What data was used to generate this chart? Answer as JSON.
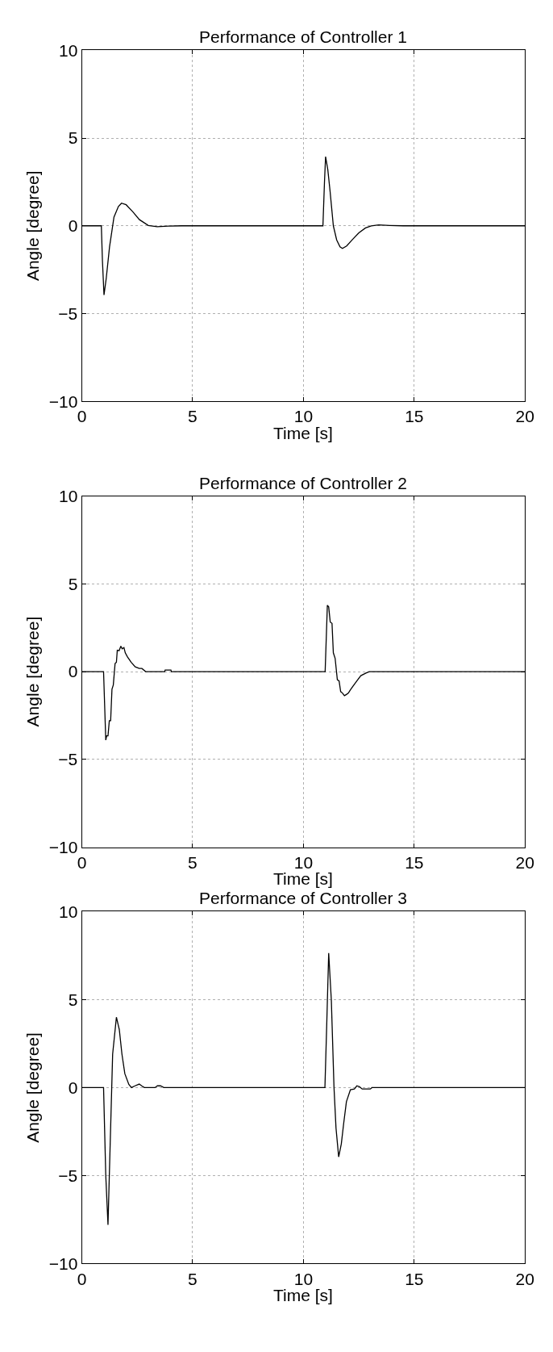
{
  "chart_data": [
    {
      "type": "line",
      "title": "Performance of Controller 1",
      "xlabel": "Time [s]",
      "ylabel": "Angle [degree]",
      "xlim": [
        0,
        20
      ],
      "ylim": [
        -10,
        10
      ],
      "xticks": [
        0,
        5,
        10,
        15,
        20
      ],
      "yticks": [
        -10,
        -5,
        0,
        5,
        10
      ],
      "grid": true,
      "line_style": "solid",
      "marker": "none",
      "series": [
        {
          "color": "#000000",
          "x": [
            0,
            0.88,
            0.93,
            1.0,
            1.1,
            1.25,
            1.45,
            1.65,
            1.79,
            2.0,
            2.3,
            2.6,
            3.0,
            3.4,
            3.9,
            4.5,
            10.88,
            10.95,
            11.0,
            11.1,
            11.2,
            11.35,
            11.5,
            11.65,
            11.76,
            11.95,
            12.2,
            12.5,
            12.8,
            13.06,
            13.4,
            13.9,
            14.5,
            20
          ],
          "values": [
            0,
            0,
            -2.0,
            -3.94,
            -3.0,
            -1.2,
            0.5,
            1.1,
            1.29,
            1.2,
            0.8,
            0.35,
            0.02,
            -0.05,
            -0.02,
            0,
            0,
            2.5,
            3.94,
            3.2,
            2.0,
            0.0,
            -0.8,
            -1.2,
            -1.29,
            -1.15,
            -0.8,
            -0.4,
            -0.12,
            0.0,
            0.05,
            0.02,
            0,
            0
          ]
        }
      ]
    },
    {
      "type": "line",
      "title": "Performance of Controller 2",
      "xlabel": "Time [s]",
      "ylabel": "Angle [degree]",
      "xlim": [
        0,
        20
      ],
      "ylim": [
        -10,
        10
      ],
      "xticks": [
        0,
        5,
        10,
        15,
        20
      ],
      "yticks": [
        -10,
        -5,
        0,
        5,
        10
      ],
      "grid": true,
      "line_style": "solid",
      "marker": "none",
      "series": [
        {
          "color": "#000000",
          "x": [
            0,
            0.98,
            1.08,
            1.12,
            1.18,
            1.24,
            1.3,
            1.36,
            1.42,
            1.5,
            1.56,
            1.6,
            1.68,
            1.76,
            1.82,
            1.9,
            1.96,
            2.06,
            2.23,
            2.41,
            2.59,
            2.71,
            2.88,
            3.74,
            3.76,
            4.02,
            4.04,
            10.98,
            11.08,
            11.14,
            11.21,
            11.29,
            11.35,
            11.43,
            11.53,
            11.61,
            11.68,
            11.76,
            11.85,
            11.94,
            12.03,
            12.12,
            12.23,
            12.41,
            12.59,
            12.82,
            12.97,
            20
          ],
          "values": [
            0,
            0,
            -3.9,
            -3.66,
            -3.66,
            -2.8,
            -2.8,
            -1.0,
            -0.76,
            0.46,
            0.53,
            1.22,
            1.19,
            1.45,
            1.3,
            1.37,
            1.07,
            0.84,
            0.53,
            0.27,
            0.18,
            0.18,
            0,
            0,
            0.09,
            0.09,
            0,
            0,
            3.78,
            3.69,
            2.82,
            2.75,
            1.07,
            0.76,
            -0.46,
            -0.53,
            -1.14,
            -1.22,
            -1.37,
            -1.3,
            -1.22,
            -1.04,
            -0.84,
            -0.53,
            -0.23,
            -0.08,
            0,
            0
          ]
        }
      ]
    },
    {
      "type": "line",
      "title": "Performance of Controller 3",
      "xlabel": "Time [s]",
      "ylabel": "Angle [degree]",
      "xlim": [
        0,
        20
      ],
      "ylim": [
        -10,
        10
      ],
      "xticks": [
        0,
        5,
        10,
        15,
        20
      ],
      "yticks": [
        -10,
        -5,
        0,
        5,
        10
      ],
      "grid": true,
      "line_style": "solid",
      "marker": "none",
      "series": [
        {
          "color": "#000000",
          "x": [
            0,
            0.98,
            1.08,
            1.18,
            1.24,
            1.39,
            1.56,
            1.69,
            1.81,
            1.94,
            2.12,
            2.24,
            2.4,
            2.59,
            2.7,
            2.82,
            3.3,
            3.41,
            3.55,
            3.7,
            10.97,
            11.05,
            11.14,
            11.26,
            11.38,
            11.47,
            11.59,
            11.71,
            11.82,
            11.94,
            12.12,
            12.3,
            12.41,
            12.53,
            12.65,
            13.02,
            13.09,
            20
          ],
          "values": [
            0,
            0,
            -5.0,
            -7.8,
            -5.0,
            1.9,
            4.0,
            3.3,
            1.9,
            0.79,
            0.18,
            0,
            0.1,
            0.2,
            0.1,
            0,
            0,
            0.1,
            0.1,
            0,
            0,
            3.5,
            7.65,
            4.95,
            0,
            -2.3,
            -3.94,
            -3.2,
            -2.0,
            -0.8,
            -0.12,
            -0.08,
            0.1,
            0.05,
            -0.08,
            -0.08,
            0,
            0
          ]
        }
      ]
    }
  ]
}
